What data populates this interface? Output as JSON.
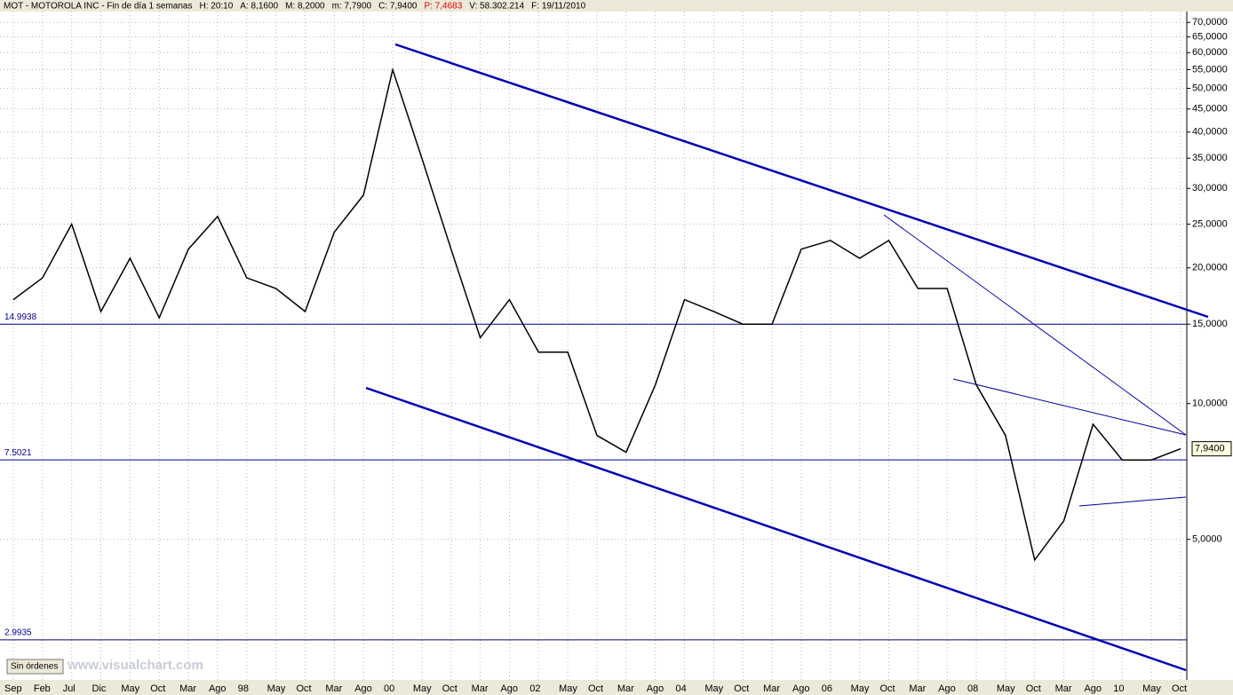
{
  "chart_data": {
    "type": "line",
    "header": [
      "MOT - MOTOROLA INC - Fin de día 1 semanas",
      "H: 20:10",
      "A: 8,1600",
      "M: 8,2000",
      "m: 7,7900",
      "C: 7,9400",
      "P: 7,4683",
      "V: 58.302.214",
      "F: 19/11/2010"
    ],
    "categories": [
      "Sep",
      "Feb",
      "Jul",
      "Dic",
      "May",
      "Oct",
      "Mar",
      "Ago",
      "98",
      "May",
      "Oct",
      "Mar",
      "Ago",
      "00",
      "May",
      "Oct",
      "Mar",
      "Ago",
      "02",
      "May",
      "Oct",
      "Mar",
      "Ago",
      "04",
      "May",
      "Oct",
      "Mar",
      "Ago",
      "06",
      "May",
      "Oct",
      "Mar",
      "Ago",
      "08",
      "May",
      "Oct",
      "Mar",
      "Ago",
      "10",
      "May",
      "Oct"
    ],
    "series": [
      {
        "color": "#000000",
        "values": [
          17,
          19,
          25,
          16,
          21,
          15.5,
          22,
          26,
          19,
          18,
          16,
          24,
          29,
          55,
          35,
          22,
          14,
          17,
          13,
          13,
          8.5,
          7.8,
          11,
          17,
          16,
          15,
          15,
          22,
          23,
          21,
          23,
          18,
          18,
          11,
          8.5,
          4.5,
          5.5,
          9,
          7.5,
          7.5,
          7.94
        ]
      }
    ],
    "log_scale": true,
    "ylim": [
      2.44,
      74
    ],
    "yticks": [
      {
        "value": 70,
        "label": "70,0000"
      },
      {
        "value": 65,
        "label": "65,0000"
      },
      {
        "value": 60,
        "label": "60,0000"
      },
      {
        "value": 55,
        "label": "55,0000"
      },
      {
        "value": 50,
        "label": "50,0000"
      },
      {
        "value": 45,
        "label": "45,0000"
      },
      {
        "value": 40,
        "label": "40,0000"
      },
      {
        "value": 35,
        "label": "35,0000"
      },
      {
        "value": 30,
        "label": "30,0000"
      },
      {
        "value": 25,
        "label": "25,0000"
      },
      {
        "value": 20,
        "label": "20,0000"
      },
      {
        "value": 15,
        "label": "15,0000"
      },
      {
        "value": 10,
        "label": "10,0000"
      },
      {
        "value": 5,
        "label": "5,0000"
      }
    ],
    "levels": [
      14.9938,
      7.5021,
      2.9935
    ],
    "last_price": {
      "value": 7.94,
      "label": "7,9400"
    },
    "grid": true,
    "status": "Sin órdenes",
    "watermark": "www.visualchart.com"
  }
}
